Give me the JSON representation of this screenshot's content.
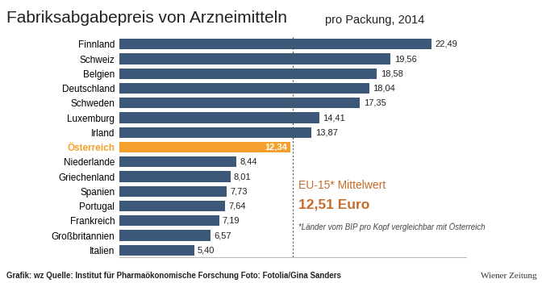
{
  "chart_data": {
    "type": "bar",
    "orientation": "horizontal",
    "title": "Fabriksabgabepreis von Arzneimitteln",
    "subtitle": "pro Packung, 2014",
    "categories": [
      "Finnland",
      "Schweiz",
      "Belgien",
      "Deutschland",
      "Schweden",
      "Luxemburg",
      "Irland",
      "Österreich",
      "Niederlande",
      "Griechenland",
      "Spanien",
      "Portugal",
      "Frankreich",
      "Großbritannien",
      "Italien"
    ],
    "values": [
      22.49,
      19.56,
      18.58,
      18.04,
      17.35,
      14.41,
      13.87,
      12.34,
      8.44,
      8.01,
      7.73,
      7.64,
      7.19,
      6.57,
      5.4
    ],
    "value_labels": [
      "22,49",
      "19,56",
      "18,58",
      "18,04",
      "17,35",
      "14,41",
      "13,87",
      "12,34",
      "8,44",
      "8,01",
      "7,73",
      "7,64",
      "7,19",
      "6,57",
      "5,40"
    ],
    "colors": [
      "#3b5878",
      "#3b5878",
      "#3b5878",
      "#3b5878",
      "#3b5878",
      "#3b5878",
      "#3b5878",
      "#f5a02c",
      "#3b5878",
      "#3b5878",
      "#3b5878",
      "#3b5878",
      "#3b5878",
      "#3b5878",
      "#3b5878"
    ],
    "data_labels": true,
    "xlim": [
      0,
      25
    ],
    "xticks": [],
    "tick_labels": "y",
    "grid": false,
    "reference_line": {
      "value": 12.51,
      "label": "EU-15* Mittelwert",
      "value_label": "12,51 Euro",
      "note": "*Länder vom BIP pro Kopf vergleichbar mit Österreich"
    },
    "source": "Grafik: wz Quelle: Institut für Pharmaökonomische Forschung Foto: Fotolia/Gina Sanders",
    "publisher": "Wiener Zeitung"
  }
}
